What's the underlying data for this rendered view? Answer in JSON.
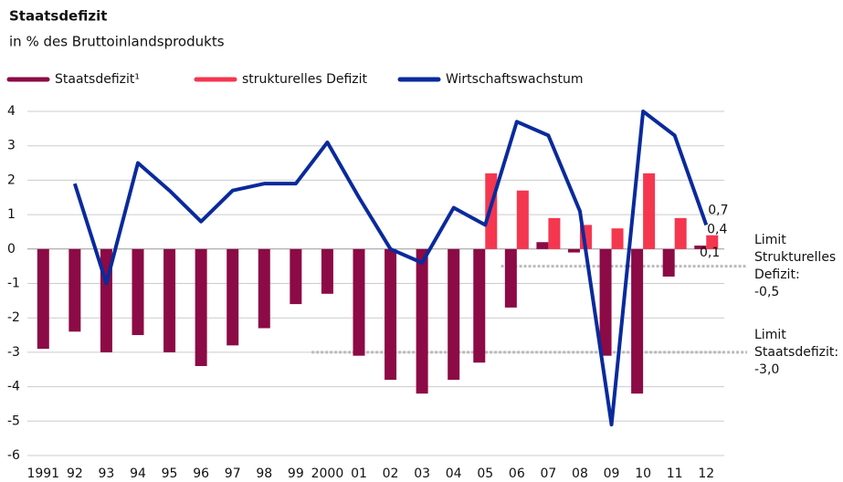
{
  "chart_data": {
    "type": "bar_line",
    "title": "Staatsdefizit",
    "subtitle": "in % des Bruttoinlandsprodukts",
    "categories": [
      "1991",
      "92",
      "93",
      "94",
      "95",
      "96",
      "97",
      "98",
      "99",
      "2000",
      "01",
      "02",
      "03",
      "04",
      "05",
      "06",
      "07",
      "08",
      "09",
      "10",
      "11",
      "12"
    ],
    "series": [
      {
        "name": "Staatsdefizit¹",
        "color": "#8c0a45",
        "kind": "bar",
        "values": [
          -2.9,
          -2.4,
          -3.0,
          -2.5,
          -3.0,
          -3.4,
          -2.8,
          -2.3,
          -1.6,
          -1.3,
          -3.1,
          -3.8,
          -4.2,
          -3.8,
          -3.3,
          -1.7,
          0.2,
          -0.1,
          -3.1,
          -4.2,
          -0.8,
          0.1
        ],
        "value_labels": [
          null,
          null,
          null,
          null,
          null,
          null,
          null,
          null,
          null,
          null,
          null,
          null,
          null,
          null,
          null,
          null,
          null,
          null,
          null,
          null,
          null,
          "0,1"
        ]
      },
      {
        "name": "strukturelles Defizit",
        "color": "#f5364f",
        "kind": "bar",
        "values": [
          null,
          null,
          null,
          null,
          null,
          null,
          null,
          null,
          null,
          null,
          null,
          null,
          null,
          null,
          2.2,
          1.7,
          0.9,
          0.7,
          0.6,
          2.2,
          0.9,
          0.4
        ],
        "value_labels": [
          null,
          null,
          null,
          null,
          null,
          null,
          null,
          null,
          null,
          null,
          null,
          null,
          null,
          null,
          null,
          null,
          null,
          null,
          null,
          null,
          null,
          "0,4"
        ]
      },
      {
        "name": "Wirtschaftswachstum",
        "color": "#0a2a9c",
        "kind": "line",
        "values": [
          null,
          1.9,
          -1.0,
          2.5,
          1.7,
          0.8,
          1.7,
          1.9,
          1.9,
          3.1,
          1.5,
          0.0,
          -0.4,
          1.2,
          0.7,
          3.7,
          3.3,
          1.1,
          -5.1,
          4.0,
          3.3,
          0.7
        ],
        "value_labels": [
          null,
          null,
          null,
          null,
          null,
          null,
          null,
          null,
          null,
          null,
          null,
          null,
          null,
          null,
          null,
          null,
          null,
          null,
          null,
          null,
          null,
          "0,7"
        ]
      }
    ],
    "ylim": [
      -6,
      4
    ],
    "yticks": [
      -6,
      -5,
      -4,
      -3,
      -2,
      -1,
      0,
      1,
      2,
      3,
      4
    ],
    "grid": true,
    "reference_lines": [
      {
        "value": -0.5,
        "from": "06",
        "label": [
          "Limit",
          "Strukturelles",
          "Defizit:",
          "-0,5"
        ]
      },
      {
        "value": -3.0,
        "from": "2000",
        "label": [
          "Limit",
          "Staatsdefizit:",
          "-3,0"
        ]
      }
    ]
  }
}
